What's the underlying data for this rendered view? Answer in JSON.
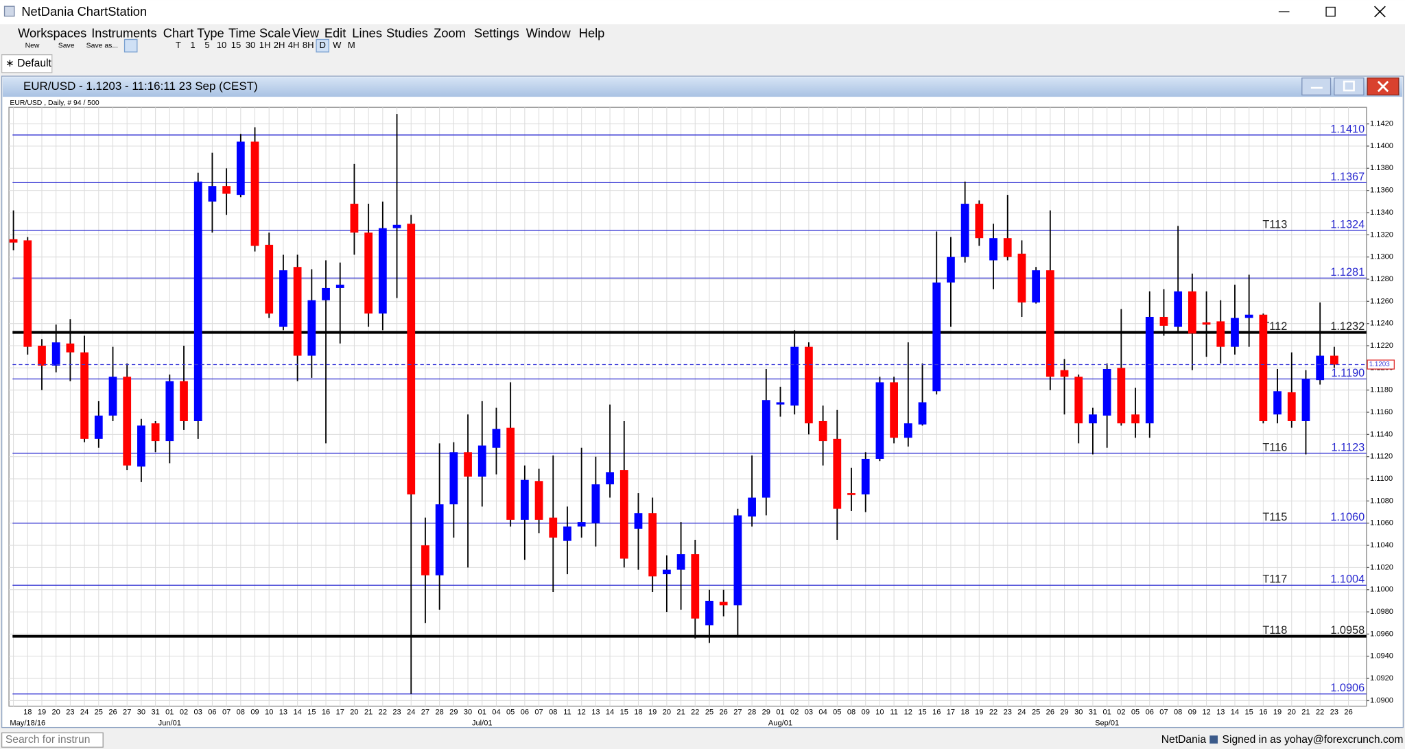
{
  "window": {
    "title": "NetDania ChartStation"
  },
  "menu": [
    "Workspaces",
    "Instruments",
    "Chart Type",
    "Time Scale",
    "View",
    "Edit",
    "Lines",
    "Studies",
    "Zoom",
    "Settings",
    "Window",
    "Help"
  ],
  "toolbar": {
    "file_buttons": [
      "New",
      "Save",
      "Save as..."
    ],
    "timescales": [
      "T",
      "1",
      "5",
      "10",
      "15",
      "30",
      "1H",
      "2H",
      "4H",
      "8H",
      "D",
      "W",
      "M"
    ]
  },
  "tab": "∗ Default",
  "chart_window": {
    "title": "EUR/USD - 1.1203 - 11:16:11  23 Sep (CEST)"
  },
  "status": {
    "search": "Search for instrun",
    "brand": "NetDania",
    "signed_in": "Signed in as yohay@forexcrunch.com"
  },
  "chart_data": {
    "type": "candlestick",
    "subtitle": "EUR/USD , Daily, # 94 / 500",
    "up_color": "#0000ff",
    "down_color": "#ff0000",
    "grid": true,
    "categories": [
      null,
      "18",
      "19",
      "20",
      "23",
      "24",
      "25",
      "26",
      "27",
      "30",
      "31",
      "01",
      "02",
      "03",
      "06",
      "07",
      "08",
      "09",
      "10",
      "13",
      "14",
      "15",
      "16",
      "17",
      "20",
      "21",
      "22",
      "23",
      "24",
      "27",
      "28",
      "29",
      "30",
      "01",
      "04",
      "05",
      "06",
      "07",
      "08",
      "11",
      "12",
      "13",
      "14",
      "15",
      "18",
      "19",
      "20",
      "21",
      "22",
      "25",
      "26",
      "27",
      "28",
      "29",
      "01",
      "02",
      "03",
      "04",
      "05",
      "08",
      "09",
      "10",
      "11",
      "12",
      "15",
      "16",
      "17",
      "18",
      "19",
      "22",
      "23",
      "24",
      "25",
      "26",
      "29",
      "30",
      "31",
      "01",
      "02",
      "05",
      "06",
      "07",
      "08",
      "09",
      "12",
      "13",
      "14",
      "15",
      "16",
      "19",
      "20",
      "21",
      "22",
      "23",
      "26"
    ],
    "month_labels": [
      null,
      "May/18/16",
      null,
      null,
      null,
      null,
      null,
      null,
      null,
      null,
      null,
      "Jun/01",
      null,
      null,
      null,
      null,
      null,
      null,
      null,
      null,
      null,
      null,
      null,
      null,
      null,
      null,
      null,
      null,
      null,
      null,
      null,
      null,
      null,
      "Jul/01",
      null,
      null,
      null,
      null,
      null,
      null,
      null,
      null,
      null,
      null,
      null,
      null,
      null,
      null,
      null,
      null,
      null,
      null,
      null,
      null,
      "Aug/01",
      null,
      null,
      null,
      null,
      null,
      null,
      null,
      null,
      null,
      null,
      null,
      null,
      null,
      null,
      null,
      null,
      null,
      null,
      null,
      null,
      null,
      null,
      "Sep/01",
      null,
      null,
      null,
      null,
      null,
      null,
      null,
      null,
      null,
      null,
      null,
      null,
      null,
      null,
      null,
      null,
      null
    ],
    "open": [
      1.1316,
      1.1315,
      1.122,
      1.1202,
      1.1222,
      1.1214,
      1.1136,
      1.1157,
      1.1192,
      1.1111,
      1.115,
      1.1134,
      1.1188,
      1.1152,
      1.135,
      1.1364,
      1.1356,
      1.1404,
      1.1311,
      1.1237,
      1.1291,
      1.1211,
      1.1261,
      1.1272,
      1.1348,
      1.1322,
      1.1249,
      1.1326,
      1.133,
      1.104,
      1.1013,
      1.1077,
      1.1124,
      1.1102,
      1.1128,
      1.1146,
      1.1063,
      1.1098,
      1.1065,
      1.1044,
      1.1057,
      1.106,
      1.1095,
      1.1108,
      1.1055,
      1.1069,
      1.1014,
      1.1018,
      1.1032,
      1.0968,
      1.0989,
      1.0986,
      1.1066,
      1.1083,
      1.1167,
      1.1166,
      1.1219,
      1.1152,
      1.1136,
      1.1087,
      1.1086,
      1.1118,
      1.1187,
      1.1137,
      1.1149,
      1.1179,
      1.1277,
      1.13,
      1.1348,
      1.1297,
      1.1317,
      1.1303,
      1.1259,
      1.1288,
      1.1198,
      1.1192,
      1.115,
      1.1157,
      1.12,
      1.1158,
      1.115,
      1.1246,
      1.1237,
      1.1269,
      1.1241,
      1.1242,
      1.1219,
      1.1245,
      1.1248,
      1.1158,
      1.1178,
      1.1152,
      1.1189,
      1.1211,
      null
    ],
    "high": [
      1.1342,
      1.1318,
      1.1226,
      1.1239,
      1.1244,
      1.1229,
      1.117,
      1.1219,
      1.1204,
      1.1154,
      1.1152,
      1.1194,
      1.122,
      1.1376,
      1.1394,
      1.138,
      1.1411,
      1.1417,
      1.1322,
      1.1302,
      1.1302,
      1.1289,
      1.1297,
      1.1295,
      1.1384,
      1.1348,
      1.135,
      1.1429,
      1.1338,
      1.1065,
      1.1132,
      1.1133,
      1.1158,
      1.117,
      1.1164,
      1.1187,
      1.1112,
      1.1109,
      1.1121,
      1.1075,
      1.1128,
      1.112,
      1.1167,
      1.1152,
      1.1087,
      1.1083,
      1.1031,
      1.1061,
      1.1045,
      1.1,
      1.1,
      1.1073,
      1.1121,
      1.1199,
      1.1183,
      1.1234,
      1.1223,
      1.1166,
      1.1162,
      1.111,
      1.1124,
      1.1192,
      1.1192,
      1.1223,
      1.1204,
      1.1323,
      1.1318,
      1.1368,
      1.1351,
      1.133,
      1.1356,
      1.1315,
      1.1291,
      1.1342,
      1.1208,
      1.1194,
      1.1164,
      1.1204,
      1.1253,
      1.1182,
      1.1269,
      1.1271,
      1.1328,
      1.1285,
      1.1269,
      1.1261,
      1.1275,
      1.1284,
      1.1249,
      1.1199,
      1.1214,
      1.1198,
      1.1259,
      1.1219,
      null
    ],
    "low": [
      1.1306,
      1.1212,
      1.118,
      1.1196,
      1.1188,
      1.1133,
      1.1128,
      1.1152,
      1.1108,
      1.1097,
      1.1124,
      1.1114,
      1.1144,
      1.1136,
      1.1322,
      1.1338,
      1.1354,
      1.1305,
      1.1245,
      1.1234,
      1.1188,
      1.1191,
      1.1132,
      1.1222,
      1.1302,
      1.1237,
      1.1234,
      1.1263,
      1.0906,
      1.097,
      1.0982,
      1.1047,
      1.102,
      1.1075,
      1.1104,
      1.1057,
      1.1027,
      1.1051,
      1.0998,
      1.1014,
      1.1047,
      1.1039,
      1.1083,
      1.102,
      1.1018,
      1.0998,
      1.098,
      1.0982,
      1.0956,
      1.0952,
      1.0976,
      1.0958,
      1.1057,
      1.1067,
      1.1156,
      1.1158,
      1.114,
      1.1112,
      1.1045,
      1.1071,
      1.107,
      1.1116,
      1.1132,
      1.1129,
      1.1148,
      1.1176,
      1.1237,
      1.1295,
      1.131,
      1.1271,
      1.1297,
      1.1246,
      1.1258,
      1.118,
      1.1158,
      1.1132,
      1.1122,
      1.1128,
      1.1148,
      1.1137,
      1.1137,
      1.1229,
      1.1233,
      1.1198,
      1.121,
      1.1204,
      1.1212,
      1.1219,
      1.115,
      1.115,
      1.1146,
      1.1122,
      1.1185,
      1.12,
      null
    ],
    "close": [
      1.1313,
      1.1219,
      1.1202,
      1.1223,
      1.1214,
      1.1136,
      1.1157,
      1.1192,
      1.1112,
      1.1148,
      1.1134,
      1.1188,
      1.1152,
      1.1368,
      1.1364,
      1.1357,
      1.1404,
      1.131,
      1.1249,
      1.1288,
      1.1211,
      1.1261,
      1.1272,
      1.1275,
      1.1322,
      1.1249,
      1.1326,
      1.1329,
      1.1086,
      1.1013,
      1.1077,
      1.1124,
      1.1102,
      1.113,
      1.1145,
      1.1063,
      1.1099,
      1.1063,
      1.1047,
      1.1057,
      1.1061,
      1.1095,
      1.1106,
      1.1028,
      1.1069,
      1.1012,
      1.1018,
      1.1032,
      1.0974,
      1.099,
      1.0986,
      1.1067,
      1.1083,
      1.1171,
      1.1169,
      1.1219,
      1.115,
      1.1134,
      1.1073,
      1.1086,
      1.1118,
      1.1187,
      1.1137,
      1.115,
      1.1169,
      1.1277,
      1.13,
      1.1348,
      1.1317,
      1.1317,
      1.13,
      1.1259,
      1.1288,
      1.1192,
      1.1192,
      1.115,
      1.1158,
      1.1199,
      1.115,
      1.115,
      1.1246,
      1.1238,
      1.1269,
      1.1231,
      1.1239,
      1.1219,
      1.1245,
      1.1248,
      1.1152,
      1.1179,
      1.1152,
      1.119,
      1.1211,
      1.1203,
      null
    ],
    "ylim": [
      1.0895,
      1.1435
    ],
    "yticks": [
      {
        "value": 1.09,
        "label": "1.0900"
      },
      {
        "value": 1.092,
        "label": "1.0920"
      },
      {
        "value": 1.094,
        "label": "1.0940"
      },
      {
        "value": 1.096,
        "label": "1.0960"
      },
      {
        "value": 1.098,
        "label": "1.0980"
      },
      {
        "value": 1.1,
        "label": "1.1000"
      },
      {
        "value": 1.102,
        "label": "1.1020"
      },
      {
        "value": 1.104,
        "label": "1.1040"
      },
      {
        "value": 1.106,
        "label": "1.1060"
      },
      {
        "value": 1.108,
        "label": "1.1080"
      },
      {
        "value": 1.11,
        "label": "1.1100"
      },
      {
        "value": 1.112,
        "label": "1.1120"
      },
      {
        "value": 1.114,
        "label": "1.1140"
      },
      {
        "value": 1.116,
        "label": "1.1160"
      },
      {
        "value": 1.118,
        "label": "1.1180"
      },
      {
        "value": 1.12,
        "label": "1.1200"
      },
      {
        "value": 1.122,
        "label": "1.1220"
      },
      {
        "value": 1.124,
        "label": "1.1240"
      },
      {
        "value": 1.126,
        "label": "1.1260"
      },
      {
        "value": 1.128,
        "label": "1.1280"
      },
      {
        "value": 1.13,
        "label": "1.1300"
      },
      {
        "value": 1.132,
        "label": "1.1320"
      },
      {
        "value": 1.134,
        "label": "1.1340"
      },
      {
        "value": 1.136,
        "label": "1.1360"
      },
      {
        "value": 1.138,
        "label": "1.1380"
      },
      {
        "value": 1.14,
        "label": "1.1400"
      },
      {
        "value": 1.142,
        "label": "1.1420"
      }
    ],
    "levels": [
      {
        "value": 1.141,
        "label": "1.1410",
        "color": "#2a2ad0"
      },
      {
        "value": 1.1367,
        "label": "1.1367",
        "color": "#2a2ad0"
      },
      {
        "value": 1.1324,
        "label": "1.1324",
        "name": "T113",
        "color": "#2a2ad0"
      },
      {
        "value": 1.1281,
        "label": "1.1281",
        "color": "#2a2ad0"
      },
      {
        "value": 1.1232,
        "label": "1.1232",
        "name": "T112",
        "color": "#000000"
      },
      {
        "value": 1.119,
        "label": "1.1190",
        "color": "#2a2ad0"
      },
      {
        "value": 1.1123,
        "label": "1.1123",
        "name": "T116",
        "color": "#2a2ad0"
      },
      {
        "value": 1.106,
        "label": "1.1060",
        "name": "T115",
        "color": "#2a2ad0"
      },
      {
        "value": 1.1004,
        "label": "1.1004",
        "name": "T117",
        "color": "#2a2ad0"
      },
      {
        "value": 1.0958,
        "label": "1.0958",
        "name": "T118",
        "color": "#000000"
      },
      {
        "value": 1.0906,
        "label": "1.0906",
        "color": "#2a2ad0"
      }
    ],
    "current_price": {
      "value": 1.1203,
      "label": "1.1203"
    }
  }
}
